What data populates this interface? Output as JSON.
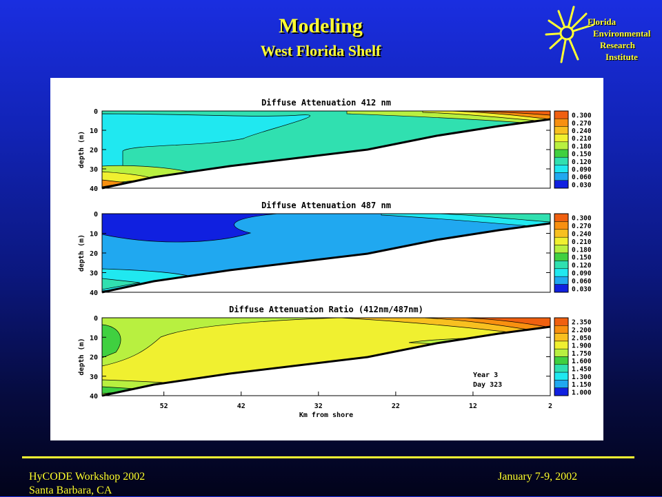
{
  "slide": {
    "title": "Modeling",
    "subtitle": "West Florida Shelf"
  },
  "logo": {
    "line1": "Florida",
    "line2": "Environmental",
    "line3": "Research",
    "line4": "Institute"
  },
  "footer": {
    "left_line1": "HyCODE Workshop 2002",
    "left_line2": "Santa Barbara, CA",
    "right": "January 7-9, 2002"
  },
  "colors": {
    "background_top": "#1a2ee0",
    "background_bottom": "#02031a",
    "accent": "#ffff33",
    "bathymetry_line": "#000000"
  },
  "chart_data": [
    {
      "type": "heatmap",
      "title": "Diffuse Attenuation 412 nm",
      "ylabel": "depth (m)",
      "xlabel": "",
      "yticks": [
        "0",
        "10",
        "20",
        "30",
        "40"
      ],
      "ylim": [
        0,
        40
      ],
      "xlim": [
        60,
        2
      ],
      "colorbar": {
        "labels": [
          "0.300",
          "0.270",
          "0.240",
          "0.210",
          "0.180",
          "0.150",
          "0.120",
          "0.090",
          "0.060",
          "0.030"
        ],
        "colors": [
          "#f06010",
          "#f89010",
          "#f8c020",
          "#f0f030",
          "#b8f040",
          "#40d040",
          "#30e0b0",
          "#20e8f0",
          "#20a8f0",
          "#1020e0"
        ]
      }
    },
    {
      "type": "heatmap",
      "title": "Diffuse Attenuation 487 nm",
      "ylabel": "depth (m)",
      "xlabel": "",
      "yticks": [
        "0",
        "10",
        "20",
        "30",
        "40"
      ],
      "ylim": [
        0,
        40
      ],
      "xlim": [
        60,
        2
      ],
      "colorbar": {
        "labels": [
          "0.300",
          "0.270",
          "0.240",
          "0.210",
          "0.180",
          "0.150",
          "0.120",
          "0.090",
          "0.060",
          "0.030"
        ],
        "colors": [
          "#f06010",
          "#f89010",
          "#f8c020",
          "#f0f030",
          "#b8f040",
          "#40d040",
          "#30e0b0",
          "#20e8f0",
          "#20a8f0",
          "#1020e0"
        ]
      }
    },
    {
      "type": "heatmap",
      "title": "Diffuse Attenuation Ratio (412nm/487nm)",
      "ylabel": "depth (m)",
      "xlabel": "Km from shore",
      "xticks": [
        "52",
        "42",
        "32",
        "22",
        "12",
        "2"
      ],
      "yticks": [
        "0",
        "10",
        "20",
        "30",
        "40"
      ],
      "ylim": [
        0,
        40
      ],
      "xlim": [
        60,
        2
      ],
      "annotation": [
        "Year   3",
        "Day  323"
      ],
      "colorbar": {
        "labels": [
          "2.350",
          "2.200",
          "2.050",
          "1.900",
          "1.750",
          "1.600",
          "1.450",
          "1.300",
          "1.150",
          "1.000"
        ],
        "colors": [
          "#f06010",
          "#f89010",
          "#f8c020",
          "#f0f030",
          "#b8f040",
          "#40d040",
          "#30e0b0",
          "#20e8f0",
          "#20a8f0",
          "#1020e0"
        ]
      }
    }
  ]
}
